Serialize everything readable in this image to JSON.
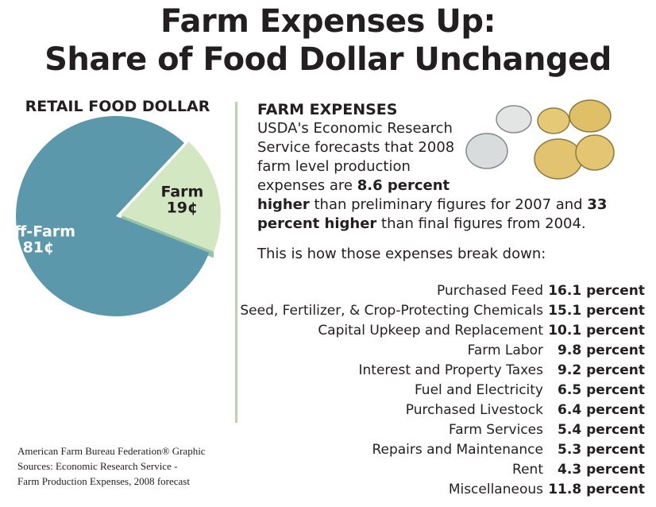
{
  "title": [
    "Farm Expenses Up:",
    "Share of Food Dollar Unchanged"
  ],
  "chart_data": {
    "type": "pie",
    "title": "RETAIL FOOD DOLLAR",
    "categories": [
      "Farm",
      "Off-Farm"
    ],
    "values": [
      19,
      81
    ],
    "value_labels": [
      "19¢",
      "81¢"
    ],
    "colors": [
      "#d4e7c3",
      "#5b98ab"
    ]
  },
  "expenses": {
    "heading": "FARM EXPENSES",
    "paragraph": [
      {
        "text": "USDA's Economic Research Service forecasts that 2008 farm level production expenses are ",
        "bold": false
      },
      {
        "text": "8.6 percent higher",
        "bold": true
      },
      {
        "text": " than preliminary figures for 2007 and ",
        "bold": false
      },
      {
        "text": "33 percent higher",
        "bold": true
      },
      {
        "text": " than final figures from 2004.",
        "bold": false
      }
    ],
    "intro": "This is how those expenses break down:",
    "rows": [
      [
        "Purchased Feed",
        "16.1 percent"
      ],
      [
        "Seed, Fertilizer, & Crop-Protecting Chemicals",
        "15.1 percent"
      ],
      [
        "Capital Upkeep and Replacement",
        "10.1 percent"
      ],
      [
        "Farm Labor",
        "9.8 percent"
      ],
      [
        "Interest and Property Taxes",
        "9.2 percent"
      ],
      [
        "Fuel and Electricity",
        "6.5 percent"
      ],
      [
        "Purchased Livestock",
        "6.4 percent"
      ],
      [
        "Farm Services",
        "5.4 percent"
      ],
      [
        "Repairs and Maintenance",
        "5.3 percent"
      ],
      [
        "Rent",
        "4.3 percent"
      ],
      [
        "Miscellaneous",
        "11.8 percent"
      ]
    ]
  },
  "credit": [
    "American Farm Bureau Federation® Graphic",
    "Sources:  Economic Research Service -",
    "Farm Production Expenses, 2008 forecast"
  ]
}
